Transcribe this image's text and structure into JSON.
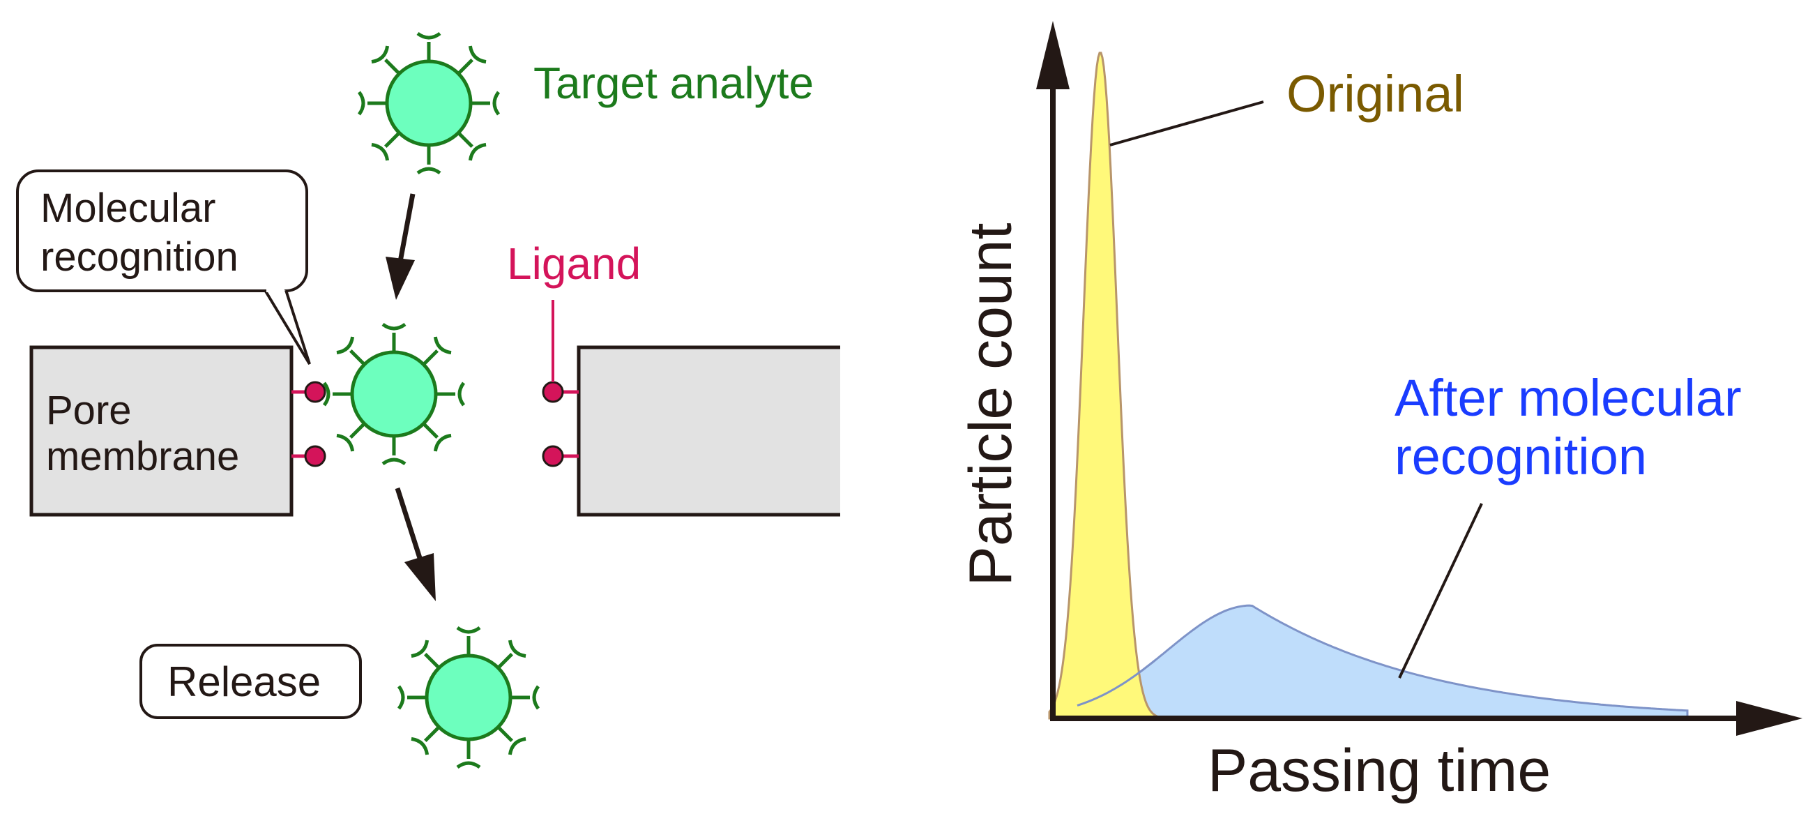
{
  "labels": {
    "target_analyte": "Target analyte",
    "molecular_recognition_line1": "Molecular",
    "molecular_recognition_line2": "recognition",
    "ligand": "Ligand",
    "pore_membrane_line1": "Pore",
    "pore_membrane_line2": "membrane",
    "release": "Release"
  },
  "colors": {
    "analyte_fill": "#6DFFBE",
    "analyte_stroke": "#1C7A1C",
    "target_text": "#1C7A1C",
    "ligand": "#D4145A",
    "ligand_text": "#D4145A",
    "membrane_fill": "#E2E2E2",
    "arrow": "#231815",
    "original_fill": "#FFF97A",
    "original_stroke": "#B8956A",
    "original_text": "#7A5A00",
    "after_fill": "#BFDDFB",
    "after_stroke": "#7E93C8",
    "after_text": "#1A3CFF",
    "overlap_fill": "#C3E5A0"
  },
  "chart_data": {
    "type": "area",
    "xlabel": "Passing time",
    "ylabel": "Particle count",
    "series": [
      {
        "name": "Original",
        "shape": "narrow tall peak near start"
      },
      {
        "name_line1": "After molecular",
        "name_line2": "recognition",
        "shape": "broad low peak, delayed, long right tail"
      }
    ],
    "grid": false
  }
}
